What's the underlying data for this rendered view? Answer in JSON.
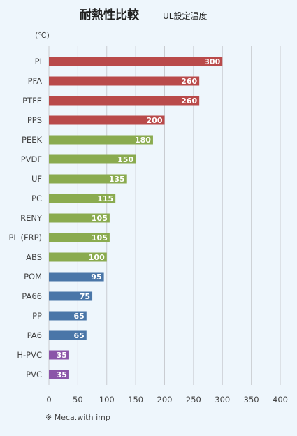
{
  "chart_data": {
    "type": "bar",
    "orientation": "horizontal",
    "title": "耐熱性比較",
    "subtitle": "UL設定温度",
    "unit": "(℃)",
    "categories": [
      "PI",
      "PFA",
      "PTFE",
      "PPS",
      "PEEK",
      "PVDF",
      "UF",
      "PC",
      "RENY",
      "PL (FRP)",
      "ABS",
      "POM",
      "PA66",
      "PP",
      "PA6",
      "H-PVC",
      "PVC"
    ],
    "values": [
      300,
      260,
      260,
      200,
      180,
      150,
      135,
      115,
      105,
      105,
      100,
      95,
      75,
      65,
      65,
      35,
      35
    ],
    "bar_colors": [
      "#b94a4a",
      "#b94a4a",
      "#b94a4a",
      "#b94a4a",
      "#8aab4f",
      "#8aab4f",
      "#8aab4f",
      "#8aab4f",
      "#8aab4f",
      "#8aab4f",
      "#8aab4f",
      "#4a76a8",
      "#4a76a8",
      "#4a76a8",
      "#4a76a8",
      "#8b55a8",
      "#8b55a8"
    ],
    "xlim": [
      0,
      400
    ],
    "xticks": [
      0,
      50,
      100,
      150,
      200,
      250,
      300,
      350,
      400
    ],
    "grid": true
  },
  "note": "※ Meca.with imp"
}
